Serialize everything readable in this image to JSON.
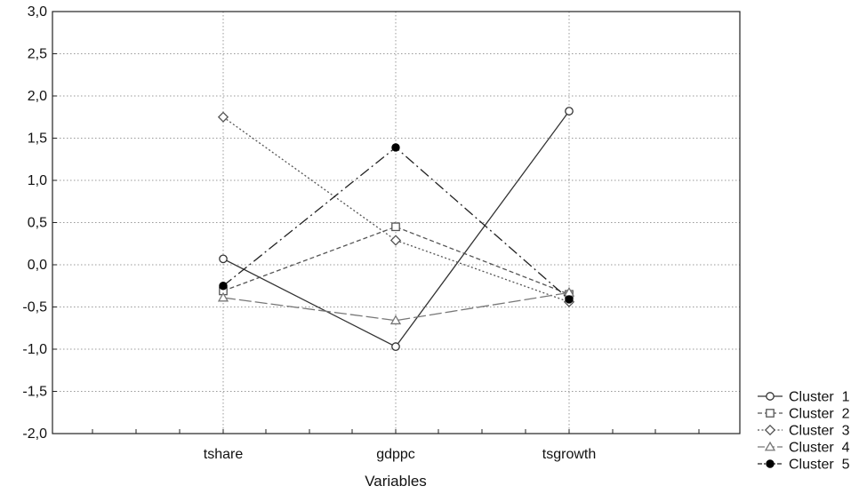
{
  "chart_data": {
    "type": "line",
    "categories": [
      "tshare",
      "gdppc",
      "tsgrowth"
    ],
    "xlabel": "Variables",
    "ylabel": "",
    "ylim": [
      -2.0,
      3.0
    ],
    "yticks": [
      "3,0",
      "2,5",
      "2,0",
      "1,5",
      "1,0",
      "0,5",
      "0,0",
      "-0,5",
      "-1,0",
      "-1,5",
      "-2,0"
    ],
    "grid": true,
    "legend_position": "bottom-right",
    "series": [
      {
        "name": "Cluster  1",
        "values": [
          0.07,
          -0.97,
          1.82
        ],
        "marker": "circle-open",
        "dash": "solid",
        "color": "#333333"
      },
      {
        "name": "Cluster  2",
        "values": [
          -0.31,
          0.45,
          -0.35
        ],
        "marker": "square-open",
        "dash": "dashed",
        "color": "#555555"
      },
      {
        "name": "Cluster  3",
        "values": [
          1.75,
          0.29,
          -0.44
        ],
        "marker": "diamond-open",
        "dash": "dotted",
        "color": "#555555"
      },
      {
        "name": "Cluster  4",
        "values": [
          -0.39,
          -0.66,
          -0.33
        ],
        "marker": "triangle-open",
        "dash": "longdash",
        "color": "#777777"
      },
      {
        "name": "Cluster  5",
        "values": [
          -0.25,
          1.39,
          -0.41
        ],
        "marker": "circle-filled",
        "dash": "dashdot",
        "color": "#222222"
      }
    ]
  }
}
